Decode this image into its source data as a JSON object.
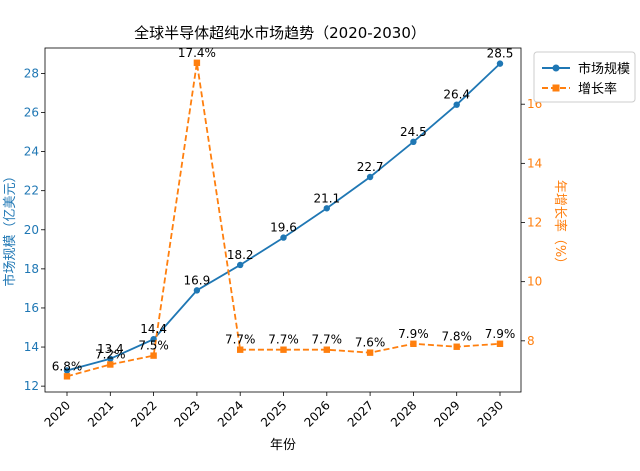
{
  "chart_data": {
    "type": "line",
    "title": "全球半导体超纯水市场趋势（2020-2030）",
    "xlabel": "年份",
    "categories": [
      "2020",
      "2021",
      "2022",
      "2023",
      "2024",
      "2025",
      "2026",
      "2027",
      "2028",
      "2029",
      "2030"
    ],
    "series": [
      {
        "name": "市场规模",
        "axis": "left",
        "color": "#1f77b4",
        "line_style": "solid",
        "marker": "circle",
        "values": [
          12.8,
          13.4,
          14.4,
          16.9,
          18.2,
          19.6,
          21.1,
          22.7,
          24.5,
          26.4,
          28.5
        ],
        "data_labels": [
          "",
          "13.4",
          "14.4",
          "16.9",
          "18.2",
          "19.6",
          "21.1",
          "22.7",
          "24.5",
          "26.4",
          "28.5"
        ]
      },
      {
        "name": "增长率",
        "axis": "right",
        "color": "#ff7f0e",
        "line_style": "dashed",
        "marker": "square",
        "values": [
          6.8,
          7.2,
          7.5,
          17.4,
          7.7,
          7.7,
          7.7,
          7.6,
          7.9,
          7.8,
          7.9
        ],
        "data_labels": [
          "6.8%",
          "7.2%",
          "7.5%",
          "17.4%",
          "7.7%",
          "7.7%",
          "7.7%",
          "7.6%",
          "7.9%",
          "7.8%",
          "7.9%"
        ]
      }
    ],
    "y_left": {
      "label": "市场规模（亿美元）",
      "ylim": [
        11.7,
        29.3
      ],
      "ticks": [
        12,
        14,
        16,
        18,
        20,
        22,
        24,
        26,
        28
      ],
      "color": "#1f77b4"
    },
    "y_right": {
      "label": "年增长率（%）",
      "ylim": [
        6.27,
        17.9
      ],
      "ticks": [
        8,
        10,
        12,
        14,
        16
      ],
      "color": "#ff7f0e"
    },
    "grid": false,
    "legend_position": "top-right-outside"
  }
}
